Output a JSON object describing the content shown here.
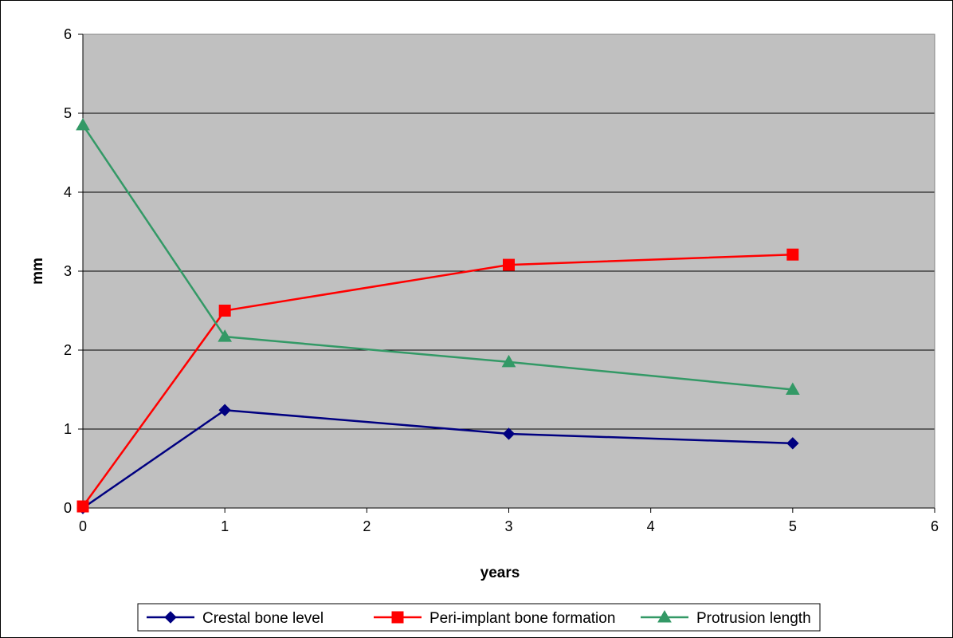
{
  "chart_data": {
    "type": "line",
    "title": "",
    "xlabel": "years",
    "ylabel": "mm",
    "xlim": [
      0,
      6
    ],
    "ylim": [
      0,
      6
    ],
    "x_ticks": [
      0,
      1,
      2,
      3,
      4,
      5,
      6
    ],
    "y_ticks": [
      0,
      1,
      2,
      3,
      4,
      5,
      6
    ],
    "grid": "horizontal",
    "legend_position": "bottom",
    "plot_background": "#C0C0C0",
    "series": [
      {
        "name": "Crestal bone level",
        "color": "#000080",
        "marker": "diamond",
        "x": [
          0,
          1,
          3,
          5
        ],
        "y": [
          0,
          1.24,
          0.94,
          0.82
        ]
      },
      {
        "name": "Peri-implant bone formation",
        "color": "#FF0000",
        "marker": "square",
        "x": [
          0,
          1,
          3,
          5
        ],
        "y": [
          0.02,
          2.5,
          3.08,
          3.21
        ]
      },
      {
        "name": "Protrusion length",
        "color": "#339966",
        "marker": "triangle",
        "x": [
          0,
          1,
          3,
          5
        ],
        "y": [
          4.85,
          2.17,
          1.85,
          1.5
        ]
      }
    ]
  }
}
